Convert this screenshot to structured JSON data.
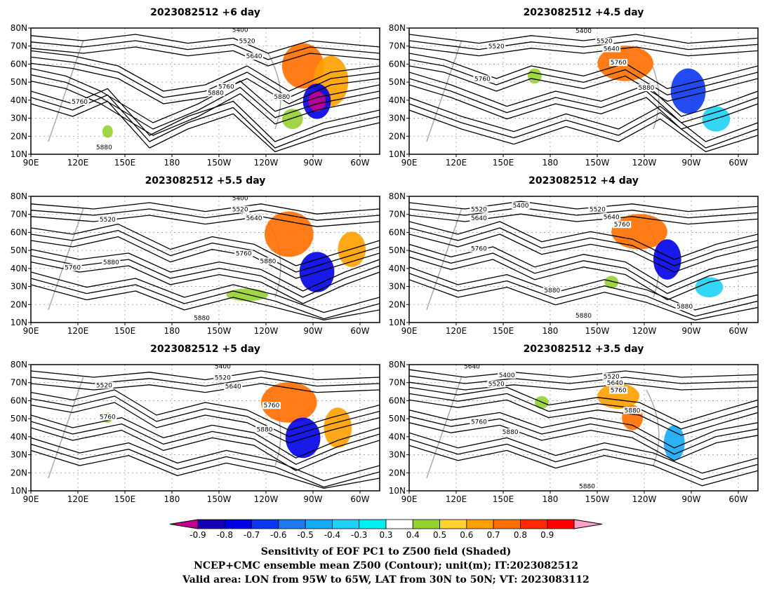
{
  "panels": [
    {
      "title": "2023082512  +6 day",
      "contour_labels": [
        "5400",
        "5520",
        "5640",
        "5760",
        "5880",
        "5760",
        "5880",
        "5880"
      ]
    },
    {
      "title": "2023082512  +4.5 day",
      "contour_labels": [
        "5400",
        "5520",
        "5640",
        "5520",
        "5760",
        "5760",
        "5880"
      ]
    },
    {
      "title": "2023082512  +5.5 day",
      "contour_labels": [
        "5400",
        "5520",
        "5520",
        "5640",
        "5760",
        "5880",
        "5760",
        "5880",
        "5880"
      ]
    },
    {
      "title": "2023082512  +4 day",
      "contour_labels": [
        "5400",
        "5520",
        "5640",
        "5520",
        "5640",
        "5760",
        "5760",
        "5880",
        "5880",
        "5880"
      ]
    },
    {
      "title": "2023082512  +5 day",
      "contour_labels": [
        "5400",
        "5520",
        "5640",
        "5520",
        "5760",
        "5760",
        "5880"
      ]
    },
    {
      "title": "2023082512  +3.5 day",
      "contour_labels": [
        "5400",
        "5520",
        "5640",
        "5520",
        "5640",
        "5760",
        "5760",
        "5880",
        "5880",
        "5880"
      ]
    }
  ],
  "axes": {
    "lat_ticks": [
      "80N",
      "70N",
      "60N",
      "50N",
      "40N",
      "30N",
      "20N",
      "10N"
    ],
    "lon_ticks": [
      "90E",
      "120E",
      "150E",
      "180",
      "150W",
      "120W",
      "90W",
      "60W"
    ]
  },
  "colorbar": {
    "labels": [
      "-0.9",
      "-0.8",
      "-0.7",
      "-0.6",
      "-0.5",
      "-0.4",
      "-0.3",
      "0.3",
      "0.4",
      "0.5",
      "0.6",
      "0.7",
      "0.8",
      "0.9"
    ],
    "colors": [
      "#c40090",
      "#1500b4",
      "#0000e6",
      "#0a37f0",
      "#1e78f0",
      "#14aaf5",
      "#1ed2f5",
      "#00f0f0",
      "#ffffff",
      "#96d232",
      "#ffd232",
      "#ffa000",
      "#ff6e00",
      "#ff2800",
      "#ff0000",
      "#ffa0c8"
    ]
  },
  "captions": {
    "line1": "Sensitivity of EOF PC1 to Z500 field (Shaded)",
    "line2": "NCEP+CMC ensemble mean Z500 (Contour); unit(m); IT:2023082512",
    "line3": "Valid area: LON from 95W to 65W, LAT from 30N to 50N; VT: 2023083112"
  }
}
